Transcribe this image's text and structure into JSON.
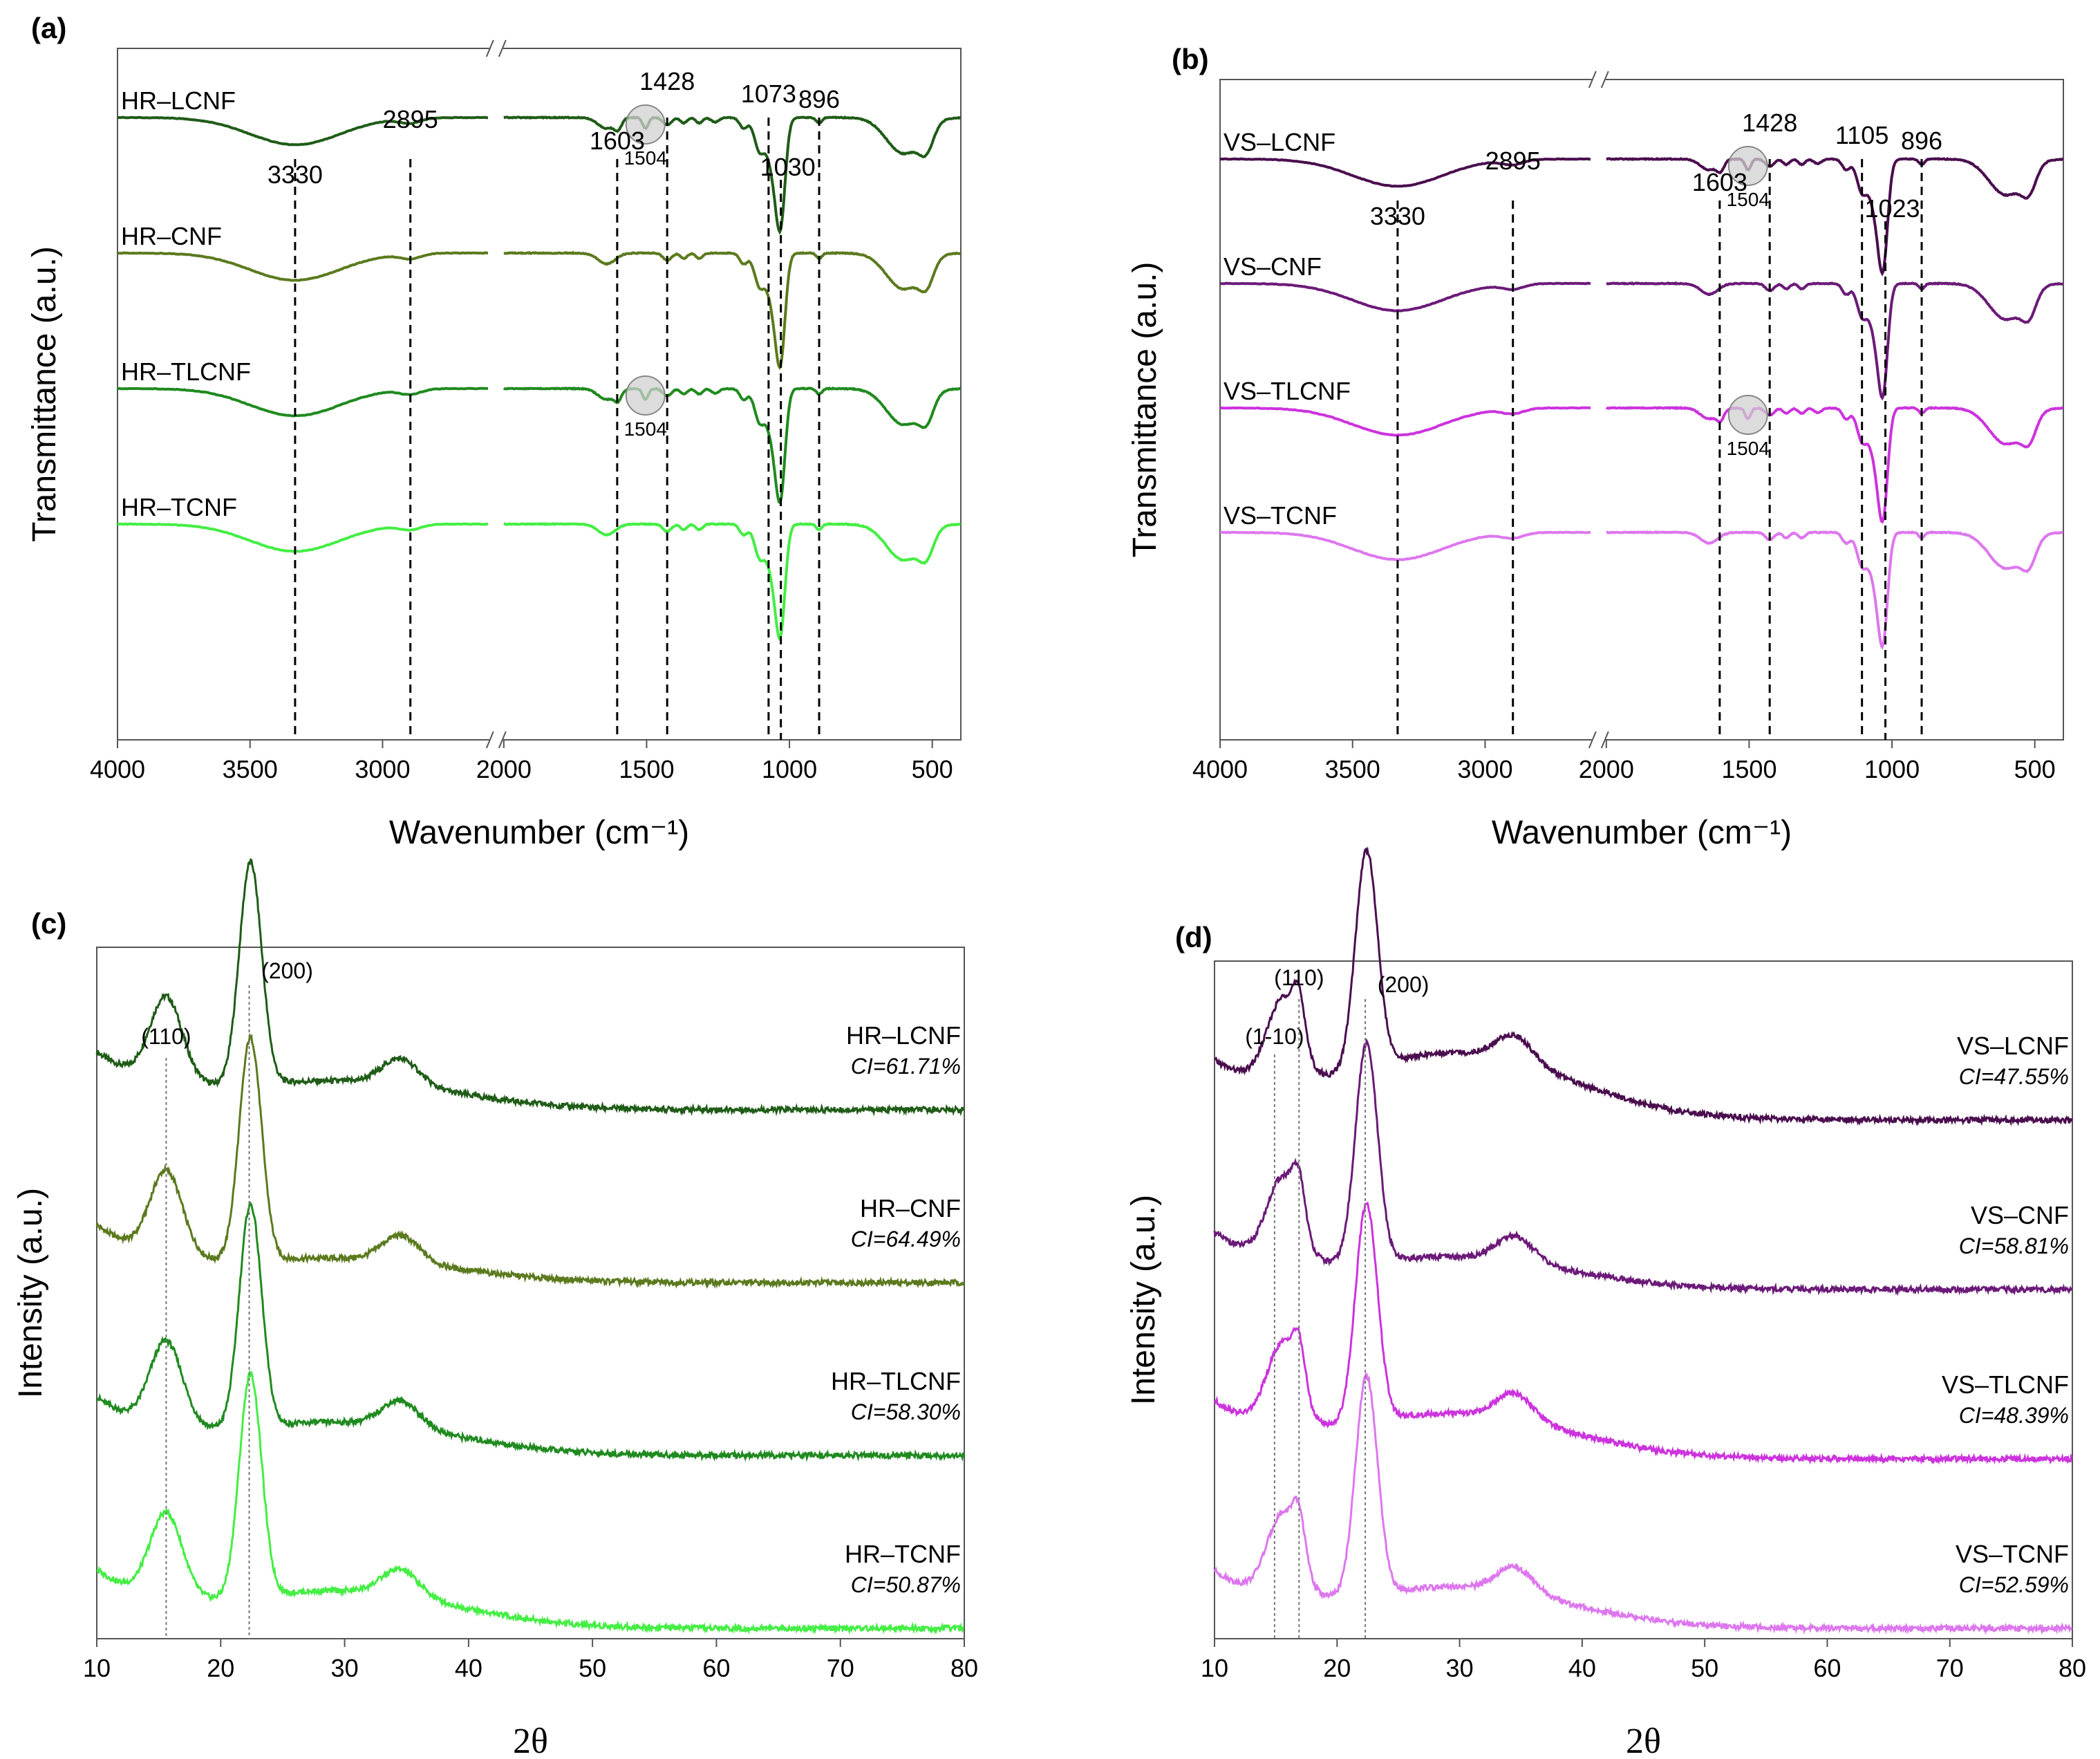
{
  "figure": {
    "panels": [
      {
        "id": "a",
        "tag": "(a)",
        "type": "line",
        "kind": "ftir",
        "ylabel": "Transmittance (a.u.)",
        "xlabel": "Wavenumber (cm⁻¹)",
        "x_break": [
          2000,
          2600
        ],
        "x_ticks": [
          {
            "v": 4000,
            "label": "4000"
          },
          {
            "v": 3500,
            "label": "3500"
          },
          {
            "v": 3000,
            "label": "3000"
          },
          {
            "v": 2000,
            "label": "2000"
          },
          {
            "v": 1500,
            "label": "1500"
          },
          {
            "v": 1000,
            "label": "1000"
          },
          {
            "v": 500,
            "label": "500"
          }
        ],
        "xlim": [
          4000,
          400
        ],
        "series": [
          {
            "name": "HR–LCNF",
            "color": "#1f5c17",
            "offset": 3,
            "lignin": true
          },
          {
            "name": "HR–CNF",
            "color": "#5b7a1e",
            "offset": 2,
            "lignin": false
          },
          {
            "name": "HR–TLCNF",
            "color": "#1f8a1f",
            "offset": 1,
            "lignin": true
          },
          {
            "name": "HR–TCNF",
            "color": "#44ee44",
            "offset": 0,
            "lignin": false
          }
        ],
        "peak_lines": [
          {
            "x": 3330,
            "label": "3330"
          },
          {
            "x": 2895,
            "label": "2895"
          },
          {
            "x": 1603,
            "label": "1603"
          },
          {
            "x": 1428,
            "label": "1428"
          },
          {
            "x": 1073,
            "label": "1073"
          },
          {
            "x": 1030,
            "label": "1030"
          },
          {
            "x": 896,
            "label": "896"
          }
        ],
        "circle_label": "1504"
      },
      {
        "id": "b",
        "tag": "(b)",
        "type": "line",
        "kind": "ftir",
        "ylabel": "Transmittance (a.u.)",
        "xlabel": "Wavenumber (cm⁻¹)",
        "x_break": [
          2000,
          2600
        ],
        "x_ticks": [
          {
            "v": 4000,
            "label": "4000"
          },
          {
            "v": 3500,
            "label": "3500"
          },
          {
            "v": 3000,
            "label": "3000"
          },
          {
            "v": 2000,
            "label": "2000"
          },
          {
            "v": 1500,
            "label": "1500"
          },
          {
            "v": 1000,
            "label": "1000"
          },
          {
            "v": 500,
            "label": "500"
          }
        ],
        "xlim": [
          4000,
          400
        ],
        "series": [
          {
            "name": "VS–LCNF",
            "color": "#4a0e4e",
            "offset": 3,
            "lignin": true
          },
          {
            "name": "VS–CNF",
            "color": "#6b1a78",
            "offset": 2,
            "lignin": false
          },
          {
            "name": "VS–TLCNF",
            "color": "#cc33dd",
            "offset": 1,
            "lignin": true
          },
          {
            "name": "VS–TCNF",
            "color": "#dd77ee",
            "offset": 0,
            "lignin": false
          }
        ],
        "peak_lines": [
          {
            "x": 3330,
            "label": "3330"
          },
          {
            "x": 2895,
            "label": "2895"
          },
          {
            "x": 1603,
            "label": "1603"
          },
          {
            "x": 1428,
            "label": "1428"
          },
          {
            "x": 1105,
            "label": "1105"
          },
          {
            "x": 1023,
            "label": "1023"
          },
          {
            "x": 896,
            "label": "896"
          }
        ],
        "circle_label": "1504"
      },
      {
        "id": "c",
        "tag": "(c)",
        "type": "line",
        "kind": "xrd",
        "ylabel": "Intensity (a.u.)",
        "xlabel": "2θ",
        "xlim": [
          10,
          80
        ],
        "x_ticks": [
          {
            "v": 10,
            "label": "10"
          },
          {
            "v": 20,
            "label": "20"
          },
          {
            "v": 30,
            "label": "30"
          },
          {
            "v": 40,
            "label": "40"
          },
          {
            "v": 50,
            "label": "50"
          },
          {
            "v": 60,
            "label": "60"
          },
          {
            "v": 70,
            "label": "70"
          },
          {
            "v": 80,
            "label": "80"
          }
        ],
        "series": [
          {
            "name": "HR–LCNF",
            "ci": "CI=61.71%",
            "color": "#1f5c17",
            "offset": 3,
            "amorph": 0.12
          },
          {
            "name": "HR–CNF",
            "ci": "CI=64.49%",
            "color": "#5b7a1e",
            "offset": 2,
            "amorph": 0.1
          },
          {
            "name": "HR–TLCNF",
            "ci": "CI=58.30%",
            "color": "#1f8a1f",
            "offset": 1,
            "amorph": 0.14
          },
          {
            "name": "HR–TCNF",
            "ci": "CI=50.87%",
            "color": "#44ee44",
            "offset": 0,
            "amorph": 0.16
          }
        ],
        "peak_lines": [
          {
            "x": 15.6,
            "label": "(110)"
          },
          {
            "x": 22.3,
            "label": "(200)"
          }
        ]
      },
      {
        "id": "d",
        "tag": "(d)",
        "type": "line",
        "kind": "xrd",
        "ylabel": "Intensity (a.u.)",
        "xlabel": "2θ",
        "xlim": [
          10,
          80
        ],
        "x_ticks": [
          {
            "v": 10,
            "label": "10"
          },
          {
            "v": 20,
            "label": "20"
          },
          {
            "v": 30,
            "label": "30"
          },
          {
            "v": 40,
            "label": "40"
          },
          {
            "v": 50,
            "label": "50"
          },
          {
            "v": 60,
            "label": "60"
          },
          {
            "v": 70,
            "label": "70"
          },
          {
            "v": 80,
            "label": "80"
          }
        ],
        "series": [
          {
            "name": "VS–LCNF",
            "ci": "CI=47.55%",
            "color": "#4a0e4e",
            "offset": 3,
            "amorph": 0.3
          },
          {
            "name": "VS–CNF",
            "ci": "CI=58.81%",
            "color": "#6b1a78",
            "offset": 2,
            "amorph": 0.14
          },
          {
            "name": "VS–TLCNF",
            "ci": "CI=48.39%",
            "color": "#cc33dd",
            "offset": 1,
            "amorph": 0.2
          },
          {
            "name": "VS–TCNF",
            "ci": "CI=52.59%",
            "color": "#dd77ee",
            "offset": 0,
            "amorph": 0.18
          }
        ],
        "peak_lines": [
          {
            "x": 14.9,
            "label": "(1-10)"
          },
          {
            "x": 16.9,
            "label": "(110)"
          },
          {
            "x": 22.3,
            "label": "(200)"
          }
        ]
      }
    ]
  }
}
